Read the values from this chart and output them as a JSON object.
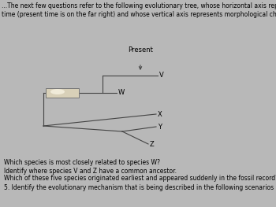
{
  "bg_color": "#b8b8b8",
  "title_line1": "...The next few questions refer to the following evolutionary tree, whose horizontal axis represents",
  "title_line2": "time (present time is on the far right) and whose vertical axis represents morphological change.",
  "title_fontsize": 5.5,
  "present_label": "Present",
  "label_fontsize": 6.0,
  "questions": [
    "Which species is most closely related to species W?",
    "Identify where species V and Z have a common ancestor.",
    "Which of these five species originated earliest and appeared suddenly in the fossil record?"
  ],
  "question5": "5. Identify the evolutionary mechanism that is being described in the following scenarios",
  "q_fontsize": 5.5,
  "line_color": "#444444",
  "line_width": 0.8,
  "box_fill": "#d8d0b8",
  "box_edge": "#777777"
}
